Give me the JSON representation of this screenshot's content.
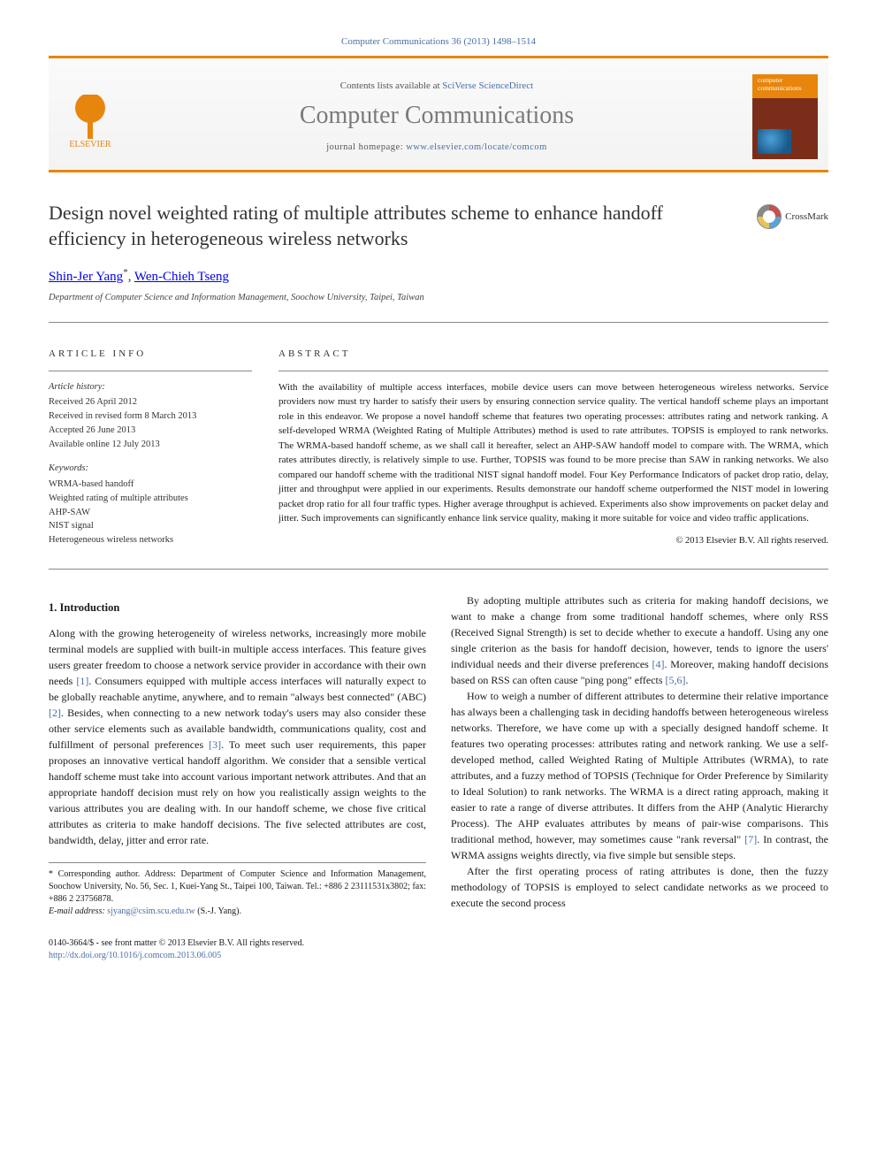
{
  "citation": "Computer Communications 36 (2013) 1498–1514",
  "header": {
    "contents_prefix": "Contents lists available at ",
    "contents_link": "SciVerse ScienceDirect",
    "journal": "Computer Communications",
    "homepage_prefix": "journal homepage: ",
    "homepage_url": "www.elsevier.com/locate/comcom",
    "publisher": "ELSEVIER",
    "cover_label": "computer communications"
  },
  "article": {
    "title": "Design novel weighted rating of multiple attributes scheme to enhance handoff efficiency in heterogeneous wireless networks",
    "crossmark": "CrossMark",
    "authors_html": "Shin-Jer Yang",
    "author2": "Wen-Chieh Tseng",
    "corr_mark": "*",
    "sep": ", ",
    "affiliation": "Department of Computer Science and Information Management, Soochow University, Taipei, Taiwan"
  },
  "meta": {
    "info_label": "ARTICLE INFO",
    "abs_label": "ABSTRACT",
    "history_heading": "Article history:",
    "history": [
      "Received 26 April 2012",
      "Received in revised form 8 March 2013",
      "Accepted 26 June 2013",
      "Available online 12 July 2013"
    ],
    "keywords_heading": "Keywords:",
    "keywords": [
      "WRMA-based handoff",
      "Weighted rating of multiple attributes",
      "AHP-SAW",
      "NIST signal",
      "Heterogeneous wireless networks"
    ],
    "abstract": "With the availability of multiple access interfaces, mobile device users can move between heterogeneous wireless networks. Service providers now must try harder to satisfy their users by ensuring connection service quality. The vertical handoff scheme plays an important role in this endeavor. We propose a novel handoff scheme that features two operating processes: attributes rating and network ranking. A self-developed WRMA (Weighted Rating of Multiple Attributes) method is used to rate attributes. TOPSIS is employed to rank networks. The WRMA-based handoff scheme, as we shall call it hereafter, select an AHP-SAW handoff model to compare with. The WRMA, which rates attributes directly, is relatively simple to use. Further, TOPSIS was found to be more precise than SAW in ranking networks. We also compared our handoff scheme with the traditional NIST signal handoff model. Four Key Performance Indicators of packet drop ratio, delay, jitter and throughput were applied in our experiments. Results demonstrate our handoff scheme outperformed the NIST model in lowering packet drop ratio for all four traffic types. Higher average throughput is achieved. Experiments also show improvements on packet delay and jitter. Such improvements can significantly enhance link service quality, making it more suitable for voice and video traffic applications.",
    "copyright": "© 2013 Elsevier B.V. All rights reserved."
  },
  "body": {
    "h1": "1. Introduction",
    "p1": "Along with the growing heterogeneity of wireless networks, increasingly more mobile terminal models are supplied with built-in multiple access interfaces. This feature gives users greater freedom to choose a network service provider in accordance with their own needs [1]. Consumers equipped with multiple access interfaces will naturally expect to be globally reachable anytime, anywhere, and to remain \"always best connected\" (ABC) [2]. Besides, when connecting to a new network today's users may also consider these other service elements such as available bandwidth, communications quality, cost and fulfillment of personal preferences [3]. To meet such user requirements, this paper proposes an innovative vertical handoff algorithm. We consider that a sensible vertical handoff scheme must take into account various important network attributes. And that an appropriate handoff decision must rely on how you realistically assign weights to the various attributes you are dealing with. In our handoff scheme, we chose five critical attributes as criteria to make handoff decisions. The five selected attributes are cost, bandwidth, delay, jitter and error rate.",
    "p2": "By adopting multiple attributes such as criteria for making handoff decisions, we want to make a change from some traditional handoff schemes, where only RSS (Received Signal Strength) is set to decide whether to execute a handoff. Using any one single criterion as the basis for handoff decision, however, tends to ignore the users' individual needs and their diverse preferences [4]. Moreover, making handoff decisions based on RSS can often cause \"ping pong\" effects [5,6].",
    "p3": "How to weigh a number of different attributes to determine their relative importance has always been a challenging task in deciding handoffs between heterogeneous wireless networks. Therefore, we have come up with a specially designed handoff scheme. It features two operating processes: attributes rating and network ranking. We use a self-developed method, called Weighted Rating of Multiple Attributes (WRMA), to rate attributes, and a fuzzy method of TOPSIS (Technique for Order Preference by Similarity to Ideal Solution) to rank networks. The WRMA is a direct rating approach, making it easier to rate a range of diverse attributes. It differs from the AHP (Analytic Hierarchy Process). The AHP evaluates attributes by means of pair-wise comparisons. This traditional method, however, may sometimes cause \"rank reversal\" [7]. In contrast, the WRMA assigns weights directly, via five simple but sensible steps.",
    "p4": "After the first operating process of rating attributes is done, then the fuzzy methodology of TOPSIS is employed to select candidate networks as we proceed to execute the second process"
  },
  "footnotes": {
    "corr": "* Corresponding author. Address: Department of Computer Science and Information Management, Soochow University, No. 56, Sec. 1, Kuei-Yang St., Taipei 100, Taiwan. Tel.: +886 2 23111531x3802; fax: +886 2 23756878.",
    "email_label": "E-mail address:",
    "email": "sjyang@csim.scu.edu.tw",
    "email_who": "(S.-J. Yang)."
  },
  "footer": {
    "left1": "0140-3664/$ - see front matter © 2013 Elsevier B.V. All rights reserved.",
    "left2": "http://dx.doi.org/10.1016/j.comcom.2013.06.005"
  },
  "refs": {
    "r1": "[1]",
    "r2": "[2]",
    "r3": "[3]",
    "r4": "[4]",
    "r56": "[5,6]",
    "r7": "[7]"
  },
  "colors": {
    "accent": "#e8850c",
    "link": "#4a6fa5",
    "text": "#1a1a1a",
    "gray": "#7a7a7a"
  }
}
